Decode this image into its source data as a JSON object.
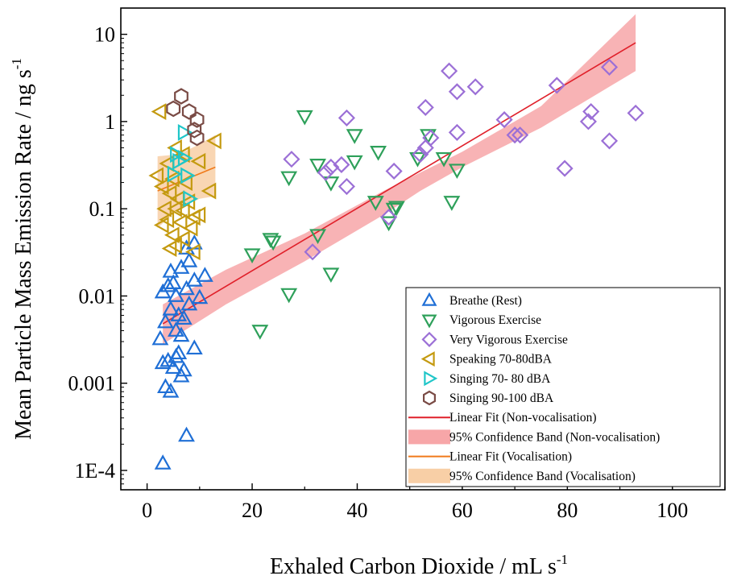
{
  "chart_data": {
    "type": "scatter",
    "xlabel": "Exhaled Carbon Dioxide  / mL s",
    "xlabel_sup": "-1",
    "ylabel": "Mean Particle Mass Emission Rate / ng s",
    "ylabel_sup": "-1",
    "yscale": "log",
    "xlim": [
      -5,
      110
    ],
    "ylim": [
      6e-05,
      20
    ],
    "xticks": [
      0,
      20,
      40,
      60,
      80,
      100
    ],
    "xtick_labels": [
      "0",
      "20",
      "40",
      "60",
      "80",
      "100"
    ],
    "yticks": [
      0.0001,
      0.001,
      0.01,
      0.1,
      1,
      10
    ],
    "ytick_labels": [
      "1E-4",
      "0.001",
      "0.01",
      "0.1",
      "1",
      "10"
    ],
    "legend_position": "bottom-right",
    "series": [
      {
        "name": "Breathe (Rest)",
        "marker": "triangle-up",
        "color": "#1f6fd6",
        "points": [
          [
            3,
            0.00012
          ],
          [
            7.5,
            0.00025
          ],
          [
            4.5,
            0.0008
          ],
          [
            3.5,
            0.0009
          ],
          [
            6.5,
            0.0012
          ],
          [
            5,
            0.0015
          ],
          [
            7,
            0.0014
          ],
          [
            3,
            0.0017
          ],
          [
            4,
            0.0018
          ],
          [
            5.5,
            0.002
          ],
          [
            6,
            0.0022
          ],
          [
            9,
            0.0025
          ],
          [
            2.5,
            0.0032
          ],
          [
            6.5,
            0.0035
          ],
          [
            5.5,
            0.004
          ],
          [
            3.5,
            0.005
          ],
          [
            7,
            0.0055
          ],
          [
            6,
            0.006
          ],
          [
            4.5,
            0.007
          ],
          [
            8,
            0.008
          ],
          [
            10,
            0.0095
          ],
          [
            5.5,
            0.01
          ],
          [
            3,
            0.011
          ],
          [
            7.5,
            0.012
          ],
          [
            4,
            0.013
          ],
          [
            5,
            0.014
          ],
          [
            9,
            0.015
          ],
          [
            11,
            0.017
          ],
          [
            4.5,
            0.019
          ],
          [
            6.5,
            0.021
          ],
          [
            8,
            0.025
          ],
          [
            7.5,
            0.035
          ],
          [
            9,
            0.04
          ]
        ]
      },
      {
        "name": "Vigorous Exercise",
        "marker": "triangle-down",
        "color": "#2ea05a",
        "points": [
          [
            21.5,
            0.004
          ],
          [
            27,
            0.0105
          ],
          [
            35,
            0.018
          ],
          [
            20,
            0.03
          ],
          [
            24,
            0.042
          ],
          [
            23.5,
            0.045
          ],
          [
            32.5,
            0.05
          ],
          [
            46,
            0.07
          ],
          [
            47,
            0.1
          ],
          [
            47.5,
            0.105
          ],
          [
            43.5,
            0.12
          ],
          [
            58,
            0.12
          ],
          [
            35,
            0.2
          ],
          [
            27,
            0.23
          ],
          [
            59,
            0.28
          ],
          [
            32.5,
            0.32
          ],
          [
            39.5,
            0.35
          ],
          [
            51.5,
            0.38
          ],
          [
            56.5,
            0.38
          ],
          [
            44,
            0.45
          ],
          [
            39.5,
            0.7
          ],
          [
            53.5,
            0.7
          ],
          [
            30,
            1.15
          ]
        ]
      },
      {
        "name": "Very Vigorous Exercise",
        "marker": "diamond",
        "color": "#9b6fd6",
        "points": [
          [
            31.5,
            0.032
          ],
          [
            46,
            0.08
          ],
          [
            38,
            0.18
          ],
          [
            34,
            0.26
          ],
          [
            35,
            0.3
          ],
          [
            37,
            0.32
          ],
          [
            47,
            0.27
          ],
          [
            27.5,
            0.37
          ],
          [
            79.5,
            0.29
          ],
          [
            52,
            0.42
          ],
          [
            53,
            0.5
          ],
          [
            54,
            0.65
          ],
          [
            88,
            0.6
          ],
          [
            70,
            0.7
          ],
          [
            71,
            0.7
          ],
          [
            59,
            0.75
          ],
          [
            68,
            1.05
          ],
          [
            84,
            1.0
          ],
          [
            84.5,
            1.3
          ],
          [
            93,
            1.25
          ],
          [
            38,
            1.1
          ],
          [
            53,
            1.45
          ],
          [
            59,
            2.2
          ],
          [
            62.5,
            2.5
          ],
          [
            78,
            2.6
          ],
          [
            57.5,
            3.8
          ],
          [
            88,
            4.2
          ]
        ]
      },
      {
        "name": "Speaking 70-80dBA",
        "marker": "triangle-left",
        "color": "#c49a10",
        "points": [
          [
            2.5,
            1.3
          ],
          [
            5.5,
            0.5
          ],
          [
            7,
            0.42
          ],
          [
            13,
            0.6
          ],
          [
            4,
            0.33
          ],
          [
            10,
            0.35
          ],
          [
            2,
            0.24
          ],
          [
            5,
            0.22
          ],
          [
            7.5,
            0.2
          ],
          [
            12,
            0.16
          ],
          [
            3,
            0.18
          ],
          [
            4.5,
            0.15
          ],
          [
            6,
            0.13
          ],
          [
            8,
            0.12
          ],
          [
            3.5,
            0.1
          ],
          [
            5.5,
            0.1
          ],
          [
            7,
            0.095
          ],
          [
            10,
            0.085
          ],
          [
            9,
            0.08
          ],
          [
            4,
            0.075
          ],
          [
            6.5,
            0.07
          ],
          [
            3,
            0.065
          ],
          [
            8.5,
            0.06
          ],
          [
            5,
            0.05
          ],
          [
            7,
            0.045
          ],
          [
            4.5,
            0.035
          ],
          [
            5.5,
            0.038
          ],
          [
            9,
            0.032
          ]
        ]
      },
      {
        "name": "Singing 70- 80 dBA",
        "marker": "triangle-right",
        "color": "#1fc6c8",
        "points": [
          [
            7,
            0.75
          ],
          [
            5.5,
            0.42
          ],
          [
            7,
            0.38
          ],
          [
            6,
            0.35
          ],
          [
            5,
            0.25
          ],
          [
            7.5,
            0.24
          ],
          [
            8,
            0.13
          ]
        ]
      },
      {
        "name": "Singing 90-100 dBA",
        "marker": "hexagon",
        "color": "#7a4b45",
        "points": [
          [
            6.5,
            1.95
          ],
          [
            8,
            1.3
          ],
          [
            9.5,
            1.05
          ],
          [
            9,
            0.8
          ],
          [
            9.5,
            0.65
          ],
          [
            5,
            1.4
          ]
        ]
      }
    ],
    "fits": [
      {
        "name": "Linear Fit (Non-vocalisation)",
        "color": "#e0202a",
        "x": [
          3,
          93
        ],
        "y": [
          0.0048,
          8.0
        ]
      },
      {
        "name": "Linear Fit (Vocalisation)",
        "color": "#f07a1a",
        "x": [
          2,
          13
        ],
        "y": [
          0.16,
          0.3
        ]
      }
    ],
    "bands": [
      {
        "name": "95% Confidence Band (Non-vocalisation)",
        "color": "#f7a6a8",
        "x": [
          3,
          15,
          30,
          45,
          52,
          60,
          75,
          93
        ],
        "lower": [
          0.0028,
          0.008,
          0.025,
          0.085,
          0.16,
          0.3,
          0.85,
          3.8
        ],
        "upper": [
          0.008,
          0.02,
          0.052,
          0.16,
          0.26,
          0.45,
          1.5,
          17
        ]
      },
      {
        "name": "95% Confidence Band (Vocalisation)",
        "color": "#f8cfa6",
        "x": [
          2,
          6,
          10,
          13
        ],
        "lower": [
          0.06,
          0.1,
          0.13,
          0.14
        ],
        "upper": [
          0.4,
          0.42,
          0.55,
          0.7
        ]
      }
    ],
    "legend": [
      {
        "label": "Breathe (Rest)",
        "kind": "triangle-up",
        "color": "#1f6fd6"
      },
      {
        "label": "Vigorous Exercise",
        "kind": "triangle-down",
        "color": "#2ea05a"
      },
      {
        "label": "Very Vigorous Exercise",
        "kind": "diamond",
        "color": "#9b6fd6"
      },
      {
        "label": "Speaking 70-80dBA",
        "kind": "triangle-left",
        "color": "#c49a10"
      },
      {
        "label": "Singing 70- 80 dBA",
        "kind": "triangle-right",
        "color": "#1fc6c8"
      },
      {
        "label": "Singing 90-100 dBA",
        "kind": "hexagon",
        "color": "#7a4b45"
      },
      {
        "label": "Linear Fit (Non-vocalisation)",
        "kind": "line",
        "color": "#e0202a"
      },
      {
        "label": "95% Confidence Band (Non-vocalisation)",
        "kind": "band",
        "color": "#f7a6a8"
      },
      {
        "label": "Linear Fit (Vocalisation)",
        "kind": "line",
        "color": "#f07a1a"
      },
      {
        "label": "95% Confidence Band (Vocalisation)",
        "kind": "band",
        "color": "#f8cfa6"
      }
    ]
  }
}
